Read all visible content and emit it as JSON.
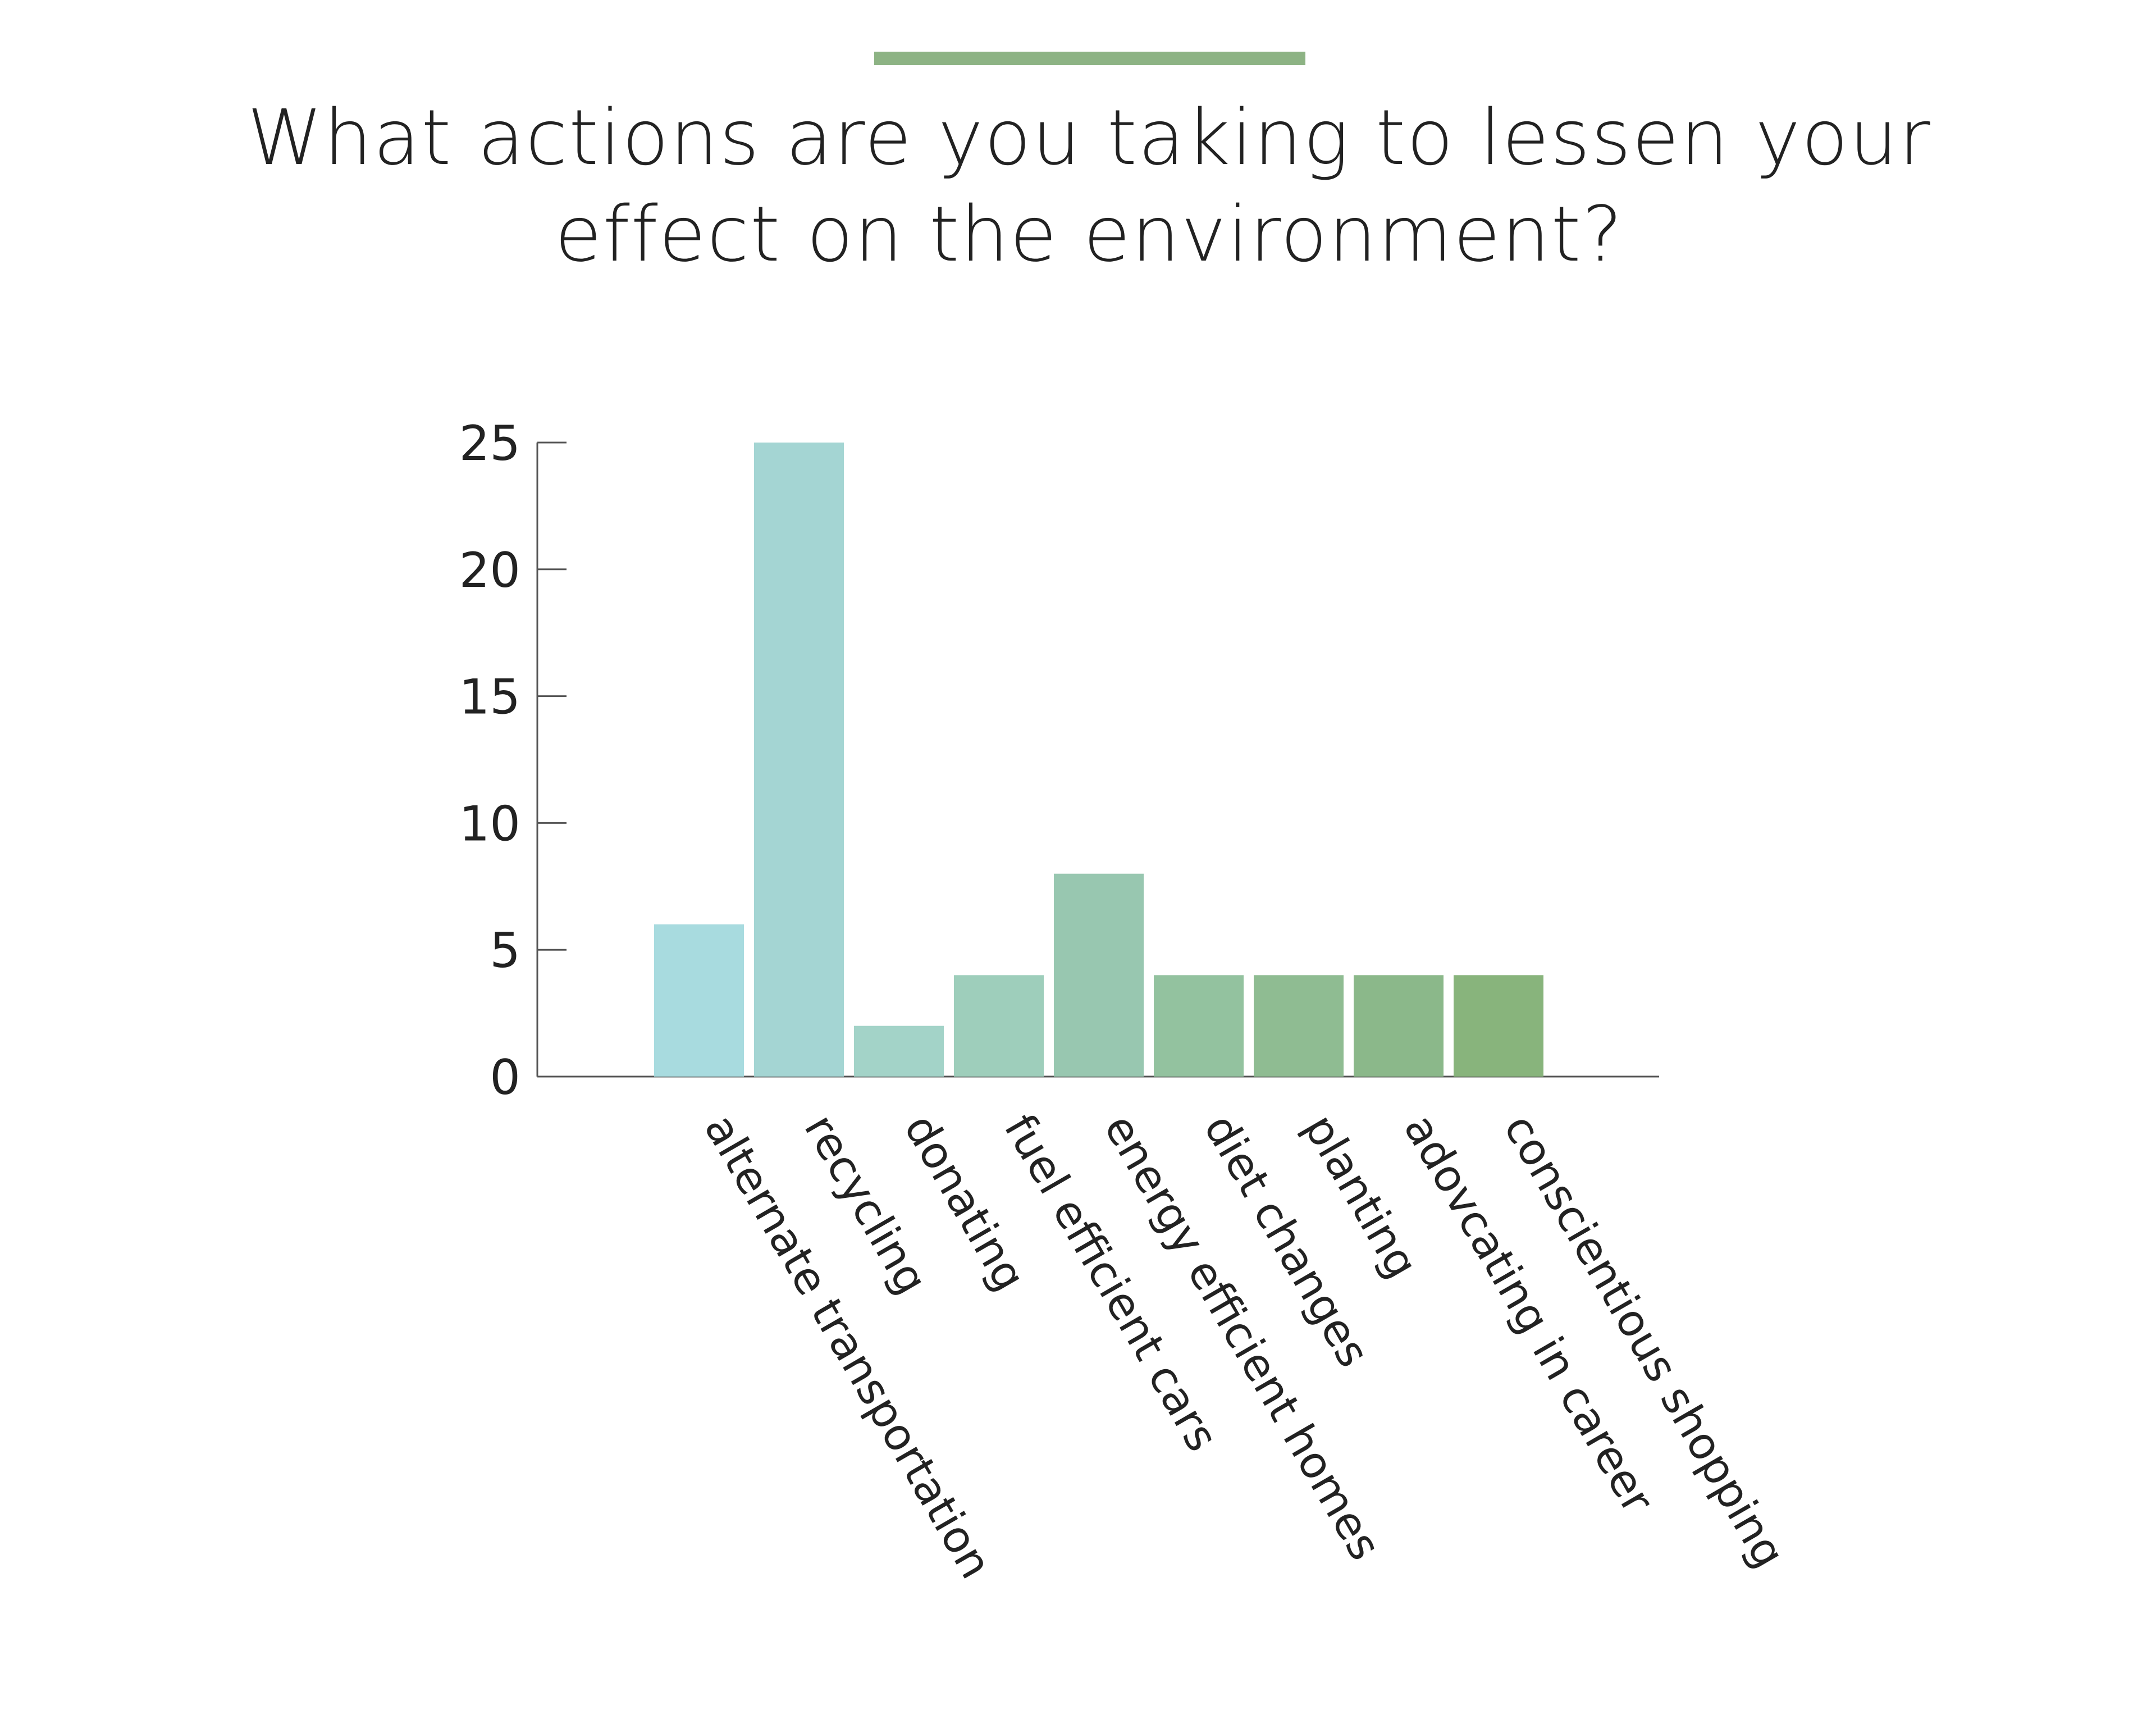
{
  "accent_color": "#8db384",
  "chart_data": {
    "type": "bar",
    "title_lines": [
      "What actions are you taking to lessen your",
      "effect on the environment?"
    ],
    "categories": [
      "alternate transportation",
      "recycling",
      "donating",
      "fuel efficient cars",
      "energy efficient homes",
      "diet changes",
      "planting",
      "adovcating in career",
      "conscientious shopping"
    ],
    "values": [
      6,
      25,
      2,
      4,
      8,
      4,
      4,
      4,
      4
    ],
    "bar_colors": [
      "#a8dbdf",
      "#a4d5d3",
      "#a3d3c8",
      "#9ecebb",
      "#98c7b0",
      "#93c29f",
      "#8fbc92",
      "#8bb88a",
      "#88b47c"
    ],
    "xlabel": "",
    "ylabel": "",
    "ylim": [
      0,
      25
    ],
    "yticks": [
      0,
      5,
      10,
      15,
      20,
      25
    ],
    "grid": false,
    "axis_color": "#555555"
  }
}
